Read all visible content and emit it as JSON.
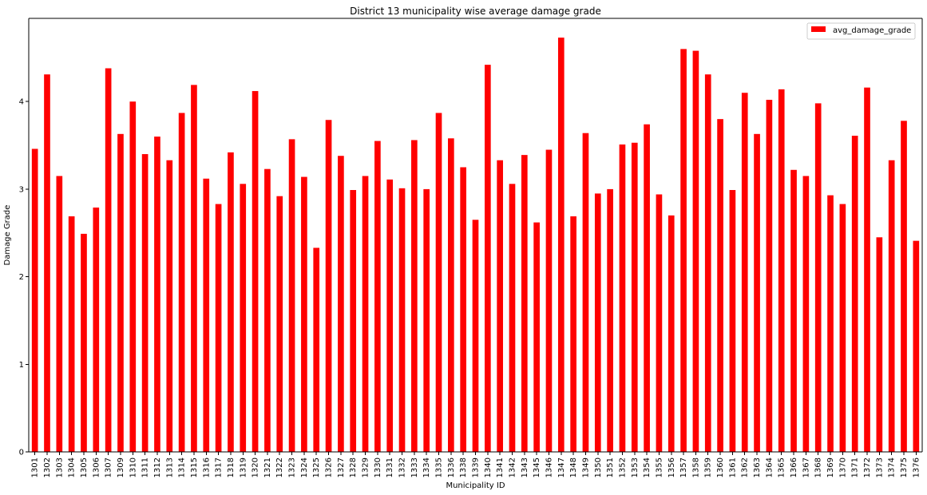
{
  "chart_data": {
    "type": "bar",
    "title": "District 13 municipality wise average damage grade",
    "xlabel": "Municipality ID",
    "ylabel": "Damage Grade",
    "legend": {
      "entries": [
        "avg_damage_grade"
      ],
      "placement": "top-right"
    },
    "ylim": [
      0,
      4.95
    ],
    "yticks": [
      0,
      1,
      2,
      3,
      4
    ],
    "grid": false,
    "colors": {
      "bar": "#ff0000",
      "axis": "#000000",
      "background": "#ffffff"
    },
    "categories": [
      "1301",
      "1302",
      "1303",
      "1304",
      "1305",
      "1306",
      "1307",
      "1309",
      "1310",
      "1311",
      "1312",
      "1313",
      "1314",
      "1315",
      "1316",
      "1317",
      "1318",
      "1319",
      "1320",
      "1321",
      "1322",
      "1323",
      "1324",
      "1325",
      "1326",
      "1327",
      "1328",
      "1329",
      "1330",
      "1331",
      "1332",
      "1333",
      "1334",
      "1335",
      "1336",
      "1338",
      "1339",
      "1340",
      "1341",
      "1342",
      "1343",
      "1345",
      "1346",
      "1347",
      "1348",
      "1349",
      "1350",
      "1351",
      "1352",
      "1353",
      "1354",
      "1355",
      "1356",
      "1357",
      "1358",
      "1359",
      "1360",
      "1361",
      "1362",
      "1363",
      "1364",
      "1365",
      "1366",
      "1367",
      "1368",
      "1369",
      "1370",
      "1371",
      "1372",
      "1373",
      "1374",
      "1375",
      "1376"
    ],
    "series": [
      {
        "name": "avg_damage_grade",
        "values": [
          3.46,
          4.31,
          3.15,
          2.69,
          2.49,
          2.79,
          4.38,
          3.63,
          4.0,
          3.4,
          3.6,
          3.33,
          3.87,
          4.19,
          3.12,
          2.83,
          3.42,
          3.06,
          4.12,
          3.23,
          2.92,
          3.57,
          3.14,
          2.33,
          3.79,
          3.38,
          2.99,
          3.15,
          3.55,
          3.11,
          3.01,
          3.56,
          3.0,
          3.87,
          3.58,
          3.25,
          2.65,
          4.42,
          3.33,
          3.06,
          3.39,
          2.62,
          3.45,
          4.73,
          2.69,
          3.64,
          2.95,
          3.0,
          3.51,
          3.53,
          3.74,
          2.94,
          2.7,
          4.6,
          4.58,
          4.31,
          3.8,
          2.99,
          4.1,
          3.63,
          4.02,
          4.14,
          3.22,
          3.15,
          3.98,
          2.93,
          2.83,
          3.61,
          4.16,
          2.45,
          3.33,
          3.78,
          2.41
        ]
      }
    ]
  }
}
